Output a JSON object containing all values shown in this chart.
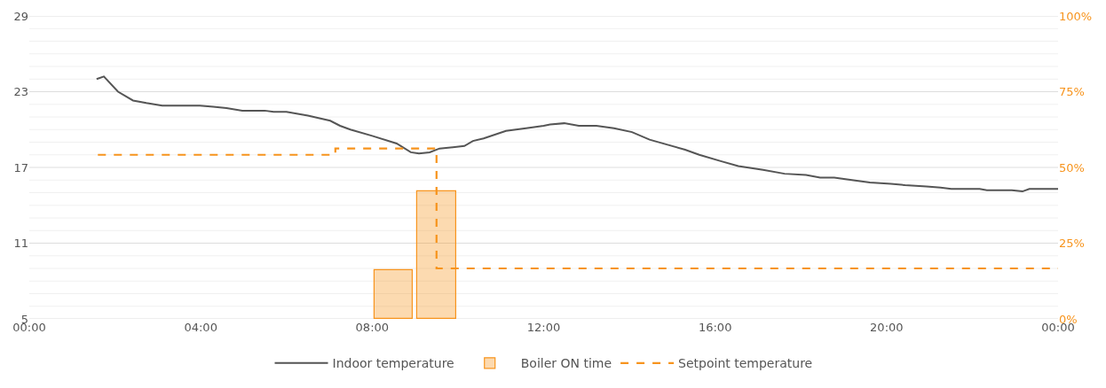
{
  "chart_data": {
    "type": "line",
    "x": [
      1.57,
      1.74,
      2.07,
      2.42,
      2.73,
      3.1,
      3.46,
      3.6,
      3.98,
      4.29,
      4.6,
      4.97,
      5.49,
      5.7,
      6.0,
      6.5,
      6.77,
      7.02,
      7.25,
      7.49,
      8.0,
      8.57,
      8.9,
      9.09,
      9.34,
      9.57,
      9.88,
      10.15,
      10.35,
      10.6,
      11.12,
      11.59,
      12.0,
      12.15,
      12.48,
      12.82,
      13.23,
      13.64,
      14.06,
      14.47,
      14.89,
      15.3,
      15.63,
      16.13,
      16.54,
      17.12,
      17.62,
      18.12,
      18.45,
      18.78,
      19.19,
      19.61,
      20.1,
      20.43,
      20.93,
      21.26,
      21.51,
      22.17,
      22.34,
      22.92,
      23.17,
      23.33,
      24.0
    ],
    "series": [
      {
        "name": "Indoor temperature",
        "color": "#555555",
        "values": [
          24.0,
          24.2,
          23.0,
          22.3,
          22.1,
          21.9,
          21.9,
          21.9,
          21.9,
          21.8,
          21.7,
          21.5,
          21.5,
          21.4,
          21.4,
          21.1,
          20.9,
          20.7,
          20.3,
          20.0,
          19.5,
          18.9,
          18.2,
          18.1,
          18.2,
          18.5,
          18.6,
          18.7,
          19.1,
          19.3,
          19.9,
          20.1,
          20.3,
          20.4,
          20.5,
          20.3,
          20.3,
          20.1,
          19.8,
          19.2,
          18.8,
          18.4,
          18.0,
          17.5,
          17.1,
          16.8,
          16.5,
          16.4,
          16.2,
          16.2,
          16.0,
          15.8,
          15.7,
          15.6,
          15.5,
          15.4,
          15.3,
          15.3,
          15.2,
          15.2,
          15.1,
          15.3,
          15.3
        ]
      },
      {
        "name": "Boiler ON time",
        "type": "bar",
        "axis": "y2",
        "color": "#f7941d",
        "x": [
          8.5,
          9.5
        ],
        "values": [
          16,
          42
        ]
      },
      {
        "name": "Setpoint temperature",
        "type": "step",
        "line_style": "dashed",
        "color": "#f7941d",
        "x": [
          1.6,
          7.14,
          9.5,
          24.0
        ],
        "values": [
          18.0,
          18.5,
          9.0,
          9.0
        ]
      }
    ],
    "xlim": [
      0,
      24
    ],
    "xticks": [
      {
        "value": 0,
        "label": "00:00"
      },
      {
        "value": 4,
        "label": "04:00"
      },
      {
        "value": 8,
        "label": "08:00"
      },
      {
        "value": 12,
        "label": "12:00"
      },
      {
        "value": 16,
        "label": "16:00"
      },
      {
        "value": 20,
        "label": "20:00"
      },
      {
        "value": 24,
        "label": "00:00"
      }
    ],
    "ylim": [
      5,
      29
    ],
    "yticks": [
      5,
      {
        "value": 6,
        "label": null
      },
      {
        "value": 7,
        "label": null
      },
      {
        "value": 8,
        "label": null
      },
      {
        "value": 9,
        "label": null
      },
      {
        "value": 10,
        "label": null
      },
      11,
      {
        "value": 12,
        "label": null
      },
      {
        "value": 13,
        "label": null
      },
      {
        "value": 14,
        "label": null
      },
      {
        "value": 15,
        "label": null
      },
      {
        "value": 16,
        "label": null
      },
      17,
      {
        "value": 18,
        "label": null
      },
      {
        "value": 19,
        "label": null
      },
      {
        "value": 20,
        "label": null
      },
      {
        "value": 21,
        "label": null
      },
      {
        "value": 22,
        "label": null
      },
      23,
      {
        "value": 24,
        "label": null
      },
      {
        "value": 25,
        "label": null
      },
      {
        "value": 26,
        "label": null
      },
      {
        "value": 27,
        "label": null
      },
      {
        "value": 28,
        "label": null
      },
      29
    ],
    "y2lim": [
      0,
      100
    ],
    "y2ticks": [
      {
        "value": 0,
        "label": "0%"
      },
      {
        "value": 25,
        "label": "25%"
      },
      {
        "value": 50,
        "label": "50%"
      },
      {
        "value": 75,
        "label": "75%"
      },
      {
        "value": 100,
        "label": "100%"
      }
    ],
    "grid": "y",
    "legend": "bottom",
    "marker": "none"
  }
}
